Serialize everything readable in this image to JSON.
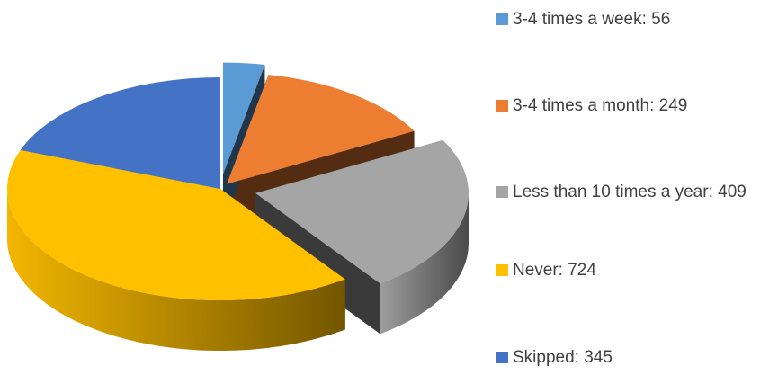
{
  "chart_data": {
    "type": "pie",
    "categories": [
      "3-4 times a week",
      "3-4 times a month",
      "Less than 10 times a year",
      "Never",
      "Skipped"
    ],
    "values": [
      56,
      249,
      409,
      724,
      345
    ],
    "colors": [
      "#5B9BD5",
      "#ED7D31",
      "#A5A5A5",
      "#FFC000",
      "#4472C4"
    ],
    "style": "3d-exploded",
    "legend_position": "right",
    "legend": [
      {
        "label": "3-4 times a week: 56",
        "color": "#5B9BD5"
      },
      {
        "label": "3-4 times a month: 249",
        "color": "#ED7D31"
      },
      {
        "label": "Less than 10 times a year: 409",
        "color": "#A5A5A5"
      },
      {
        "label": "Never: 724",
        "color": "#FFC000"
      },
      {
        "label": "Skipped: 345",
        "color": "#4472C4"
      }
    ]
  }
}
